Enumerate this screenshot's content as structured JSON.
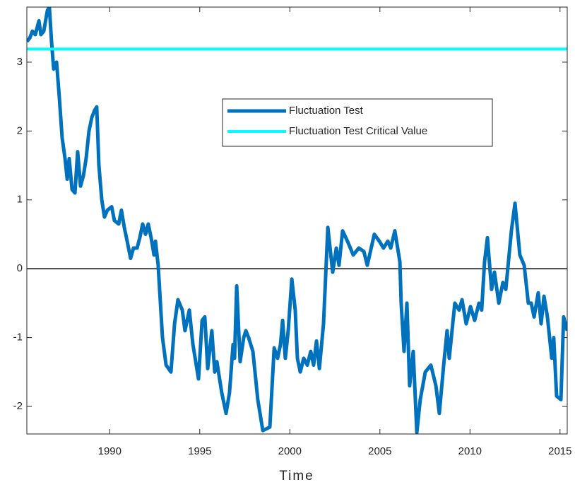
{
  "chart_data": {
    "type": "line",
    "xlabel": "Time",
    "xlim": [
      1985.4,
      2015.4
    ],
    "ylim": [
      -2.4,
      3.8
    ],
    "xticks": [
      1990,
      1995,
      2000,
      2005,
      2010,
      2015
    ],
    "yticks": [
      -2,
      -1,
      0,
      1,
      2,
      3
    ],
    "reference_line": 0,
    "legend": "upper-center",
    "series": [
      {
        "name": "Fluctuation Test",
        "color": "#0072bd",
        "x": [
          1985.4,
          1985.56,
          1985.71,
          1985.87,
          1986.07,
          1986.18,
          1986.34,
          1986.54,
          1986.65,
          1986.77,
          1986.89,
          1987.05,
          1987.2,
          1987.36,
          1987.52,
          1987.64,
          1987.75,
          1987.91,
          1988.07,
          1988.22,
          1988.38,
          1988.54,
          1988.69,
          1988.85,
          1989.01,
          1989.16,
          1989.28,
          1989.4,
          1989.56,
          1989.71,
          1989.87,
          1990.11,
          1990.26,
          1990.5,
          1990.65,
          1990.81,
          1990.97,
          1991.16,
          1991.32,
          1991.52,
          1991.67,
          1991.83,
          1991.99,
          1992.14,
          1992.3,
          1992.46,
          1992.54,
          1992.69,
          1992.93,
          1993.13,
          1993.4,
          1993.6,
          1993.79,
          1994.03,
          1994.18,
          1994.42,
          1994.62,
          1994.93,
          1995.13,
          1995.28,
          1995.44,
          1995.67,
          1995.83,
          1995.95,
          1996.22,
          1996.46,
          1996.65,
          1996.85,
          1996.93,
          1997.05,
          1997.24,
          1997.44,
          1997.56,
          1997.71,
          1997.95,
          1998.22,
          1998.5,
          1998.89,
          1999.13,
          1999.32,
          1999.48,
          1999.6,
          1999.75,
          1999.91,
          2000.11,
          2000.3,
          2000.42,
          2000.58,
          2000.77,
          2000.97,
          2001.16,
          2001.32,
          2001.48,
          2001.64,
          2001.87,
          2002.11,
          2002.38,
          2002.58,
          2002.73,
          2002.93,
          2003.2,
          2003.52,
          2003.83,
          2004.11,
          2004.3,
          2004.69,
          2004.97,
          2005.2,
          2005.44,
          2005.6,
          2005.83,
          2006.11,
          2006.18,
          2006.34,
          2006.5,
          2006.65,
          2006.85,
          2007.05,
          2007.24,
          2007.52,
          2007.83,
          2008.11,
          2008.3,
          2008.54,
          2008.73,
          2008.85,
          2009.16,
          2009.4,
          2009.56,
          2009.79,
          2010.03,
          2010.26,
          2010.5,
          2010.65,
          2010.81,
          2010.97,
          2011.2,
          2011.36,
          2011.6,
          2011.83,
          2011.99,
          2012.3,
          2012.5,
          2012.77,
          2013.01,
          2013.24,
          2013.4,
          2013.56,
          2013.79,
          2013.95,
          2014.11,
          2014.3,
          2014.54,
          2014.65,
          2014.81,
          2015.05,
          2015.2,
          2015.4
        ],
        "values": [
          3.3,
          3.35,
          3.45,
          3.4,
          3.6,
          3.4,
          3.45,
          3.75,
          3.8,
          3.3,
          2.9,
          3.0,
          2.5,
          1.9,
          1.6,
          1.3,
          1.6,
          1.15,
          1.1,
          1.7,
          1.2,
          1.35,
          1.6,
          2.0,
          2.2,
          2.3,
          2.35,
          1.5,
          1.0,
          0.75,
          0.85,
          0.9,
          0.7,
          0.65,
          0.85,
          0.6,
          0.4,
          0.15,
          0.3,
          0.3,
          0.45,
          0.65,
          0.5,
          0.65,
          0.45,
          0.2,
          0.4,
          0.05,
          -1.0,
          -1.4,
          -1.5,
          -0.8,
          -0.45,
          -0.6,
          -0.9,
          -0.6,
          -1.1,
          -1.6,
          -0.75,
          -0.7,
          -1.45,
          -0.9,
          -1.5,
          -1.35,
          -1.8,
          -2.1,
          -1.8,
          -1.1,
          -1.3,
          -0.25,
          -1.35,
          -1.0,
          -0.9,
          -1.0,
          -1.2,
          -1.9,
          -2.35,
          -2.3,
          -1.15,
          -1.3,
          -1.1,
          -0.75,
          -1.3,
          -0.9,
          -0.15,
          -0.6,
          -1.3,
          -1.5,
          -1.3,
          -1.4,
          -1.2,
          -1.4,
          -1.05,
          -1.45,
          -0.8,
          0.6,
          -0.05,
          0.3,
          0.05,
          0.55,
          0.4,
          0.2,
          0.3,
          0.25,
          0.05,
          0.5,
          0.4,
          0.3,
          0.4,
          0.3,
          0.55,
          0.1,
          -0.5,
          -1.2,
          -0.5,
          -1.7,
          -1.2,
          -2.38,
          -1.9,
          -1.5,
          -1.4,
          -1.7,
          -2.1,
          -1.4,
          -0.9,
          -1.3,
          -0.5,
          -0.6,
          -0.45,
          -0.8,
          -0.55,
          -0.75,
          -0.5,
          -0.6,
          0.1,
          0.45,
          -0.3,
          -0.05,
          -0.5,
          -0.2,
          -0.3,
          0.55,
          0.95,
          0.2,
          0.05,
          -0.5,
          -0.5,
          -0.7,
          -0.35,
          -0.8,
          -0.4,
          -0.7,
          -1.3,
          -1.0,
          -1.85,
          -1.9,
          -0.7,
          -0.9
        ]
      },
      {
        "name": "Fluctuation Test Critical Value",
        "color": "#00ffff",
        "x": [
          1985.4,
          2015.4
        ],
        "values": [
          3.19,
          3.19
        ]
      }
    ]
  }
}
